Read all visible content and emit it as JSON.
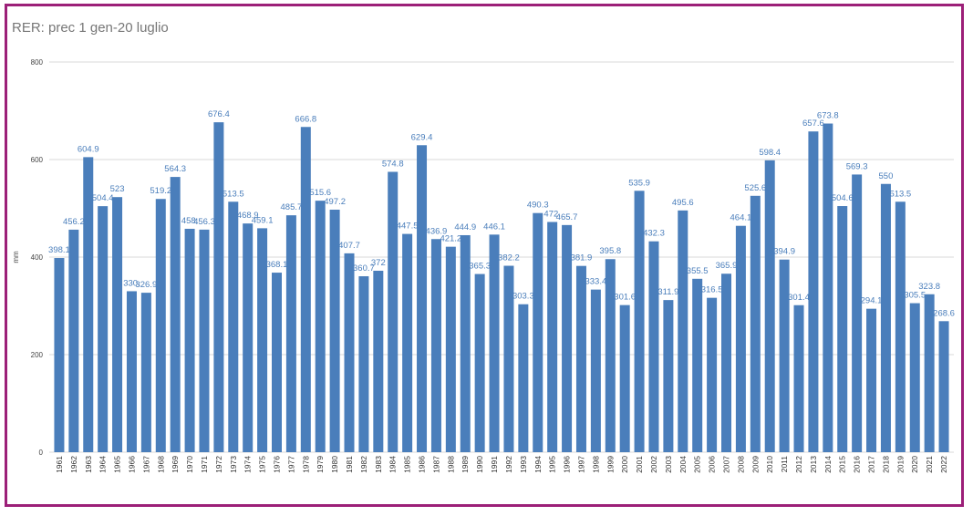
{
  "chart_data": {
    "type": "bar",
    "title": "RER: prec 1 gen-20 luglio",
    "xlabel": "",
    "ylabel": "mm",
    "ylim": [
      0,
      800
    ],
    "yticks": [
      0,
      200,
      400,
      600,
      800
    ],
    "grid": true,
    "bar_color": "#4a7ebb",
    "categories": [
      "1961",
      "1962",
      "1963",
      "1964",
      "1965",
      "1966",
      "1967",
      "1968",
      "1969",
      "1970",
      "1971",
      "1972",
      "1973",
      "1974",
      "1975",
      "1976",
      "1977",
      "1978",
      "1979",
      "1980",
      "1981",
      "1982",
      "1983",
      "1984",
      "1985",
      "1986",
      "1987",
      "1988",
      "1989",
      "1990",
      "1991",
      "1992",
      "1993",
      "1994",
      "1995",
      "1996",
      "1997",
      "1998",
      "1999",
      "2000",
      "2001",
      "2002",
      "2003",
      "2004",
      "2005",
      "2006",
      "2007",
      "2008",
      "2009",
      "2010",
      "2011",
      "2012",
      "2013",
      "2014",
      "2015",
      "2016",
      "2017",
      "2018",
      "2019",
      "2020",
      "2021",
      "2022"
    ],
    "values": [
      398.1,
      456.2,
      604.9,
      504.4,
      523,
      330,
      326.9,
      519.2,
      564.3,
      458,
      456.3,
      676.4,
      513.5,
      468.9,
      459.1,
      368.1,
      485.7,
      666.8,
      515.6,
      497.2,
      407.7,
      360.7,
      372,
      574.8,
      447.5,
      629.4,
      436.9,
      421.2,
      444.9,
      365.3,
      446.1,
      382.2,
      303.3,
      490.3,
      472,
      465.7,
      381.9,
      333.4,
      395.8,
      301.6,
      535.9,
      432.3,
      311.9,
      495.6,
      355.5,
      316.5,
      365.9,
      464.1,
      525.6,
      598.4,
      394.9,
      301.4,
      657.6,
      673.8,
      504.6,
      569.3,
      294.1,
      550,
      513.5,
      305.5,
      323.8,
      268.6
    ],
    "data_labels": [
      "398.1",
      "456.2",
      "604.9",
      "504.4",
      "523",
      "330.",
      "326.9",
      "519.2",
      "564.3",
      "458.",
      "456.3",
      "676.4",
      "513.5",
      "468.9",
      "459.1",
      "368.1",
      "485.7",
      "666.8",
      "515.6",
      "497.2",
      "407.7",
      "360.7",
      "372",
      "574.8",
      "447.5",
      "629.4",
      "436.9",
      "421.2",
      "444.9",
      "365.3",
      "446.1",
      "382.2",
      "303.3",
      "490.3",
      "472.",
      "465.7",
      "381.9",
      "333.4",
      "395.8",
      "301.6",
      "535.9",
      "432.3",
      "311.9",
      "495.6",
      "355.5",
      "316.5",
      "365.9",
      "464.1",
      "525.6",
      "598.4",
      "394.9",
      "301.4",
      "657.6",
      "673.8",
      "504.6",
      "569.3",
      "294.1",
      "550",
      "513.5",
      "305.5",
      "323.8",
      "268.6"
    ]
  },
  "frame_color": "#9c1f78"
}
